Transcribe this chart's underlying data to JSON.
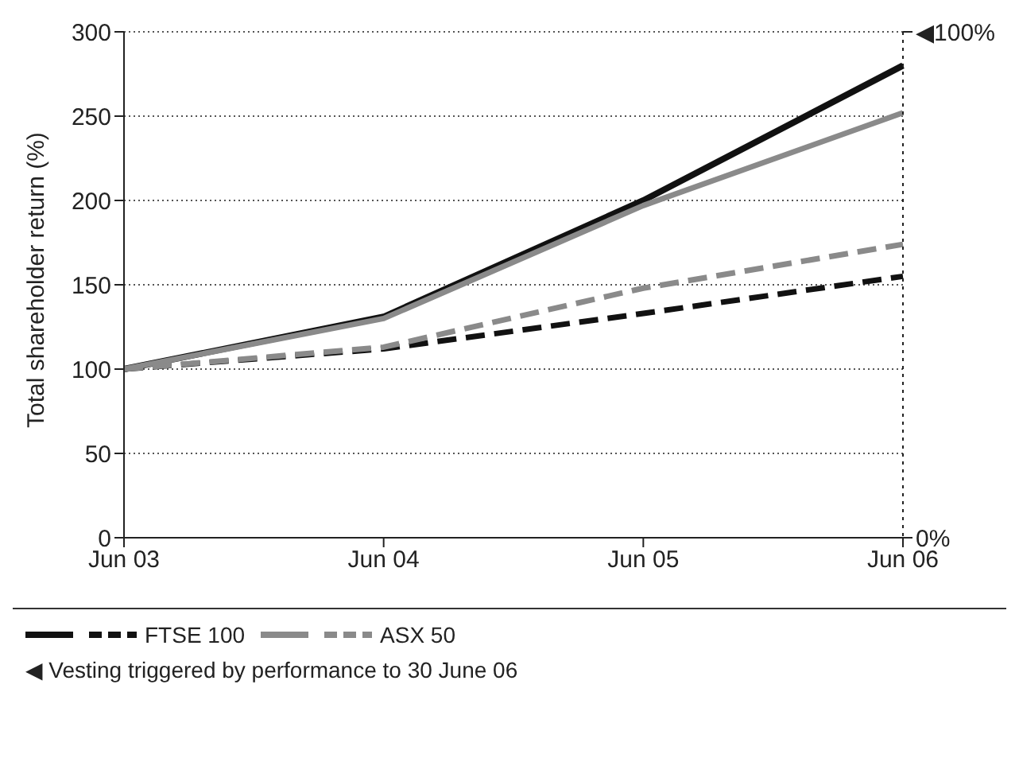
{
  "chart_data": {
    "type": "line",
    "ylabel": "Total shareholder return (%)",
    "categories": [
      "Jun 03",
      "Jun 04",
      "Jun 05",
      "Jun 06"
    ],
    "series": [
      {
        "color": "#111111",
        "values": [
          100,
          131,
          200,
          280
        ],
        "line_style": "solid"
      },
      {
        "name": "FTSE 100",
        "color": "#111111",
        "values": [
          100,
          112,
          133,
          155
        ],
        "line_style": "dashed"
      },
      {
        "color": "#8a8a8a",
        "values": [
          100,
          130,
          197,
          252
        ],
        "line_style": "solid"
      },
      {
        "name": "ASX 50",
        "color": "#8a8a8a",
        "values": [
          100,
          113,
          148,
          174
        ],
        "line_style": "dashed"
      }
    ],
    "ylim": [
      0,
      300
    ],
    "yticks": [
      0,
      50,
      100,
      150,
      200,
      250,
      300
    ],
    "y2lim": [
      0,
      100
    ],
    "y2ticks": [
      {
        "value": 0,
        "label": "0%"
      },
      {
        "value": 100,
        "label": "◀100%"
      }
    ],
    "grid": "y",
    "legend": "bottom",
    "marker": "none",
    "annotations": [
      "◀ Vesting triggered by performance to 30 June 06"
    ]
  }
}
